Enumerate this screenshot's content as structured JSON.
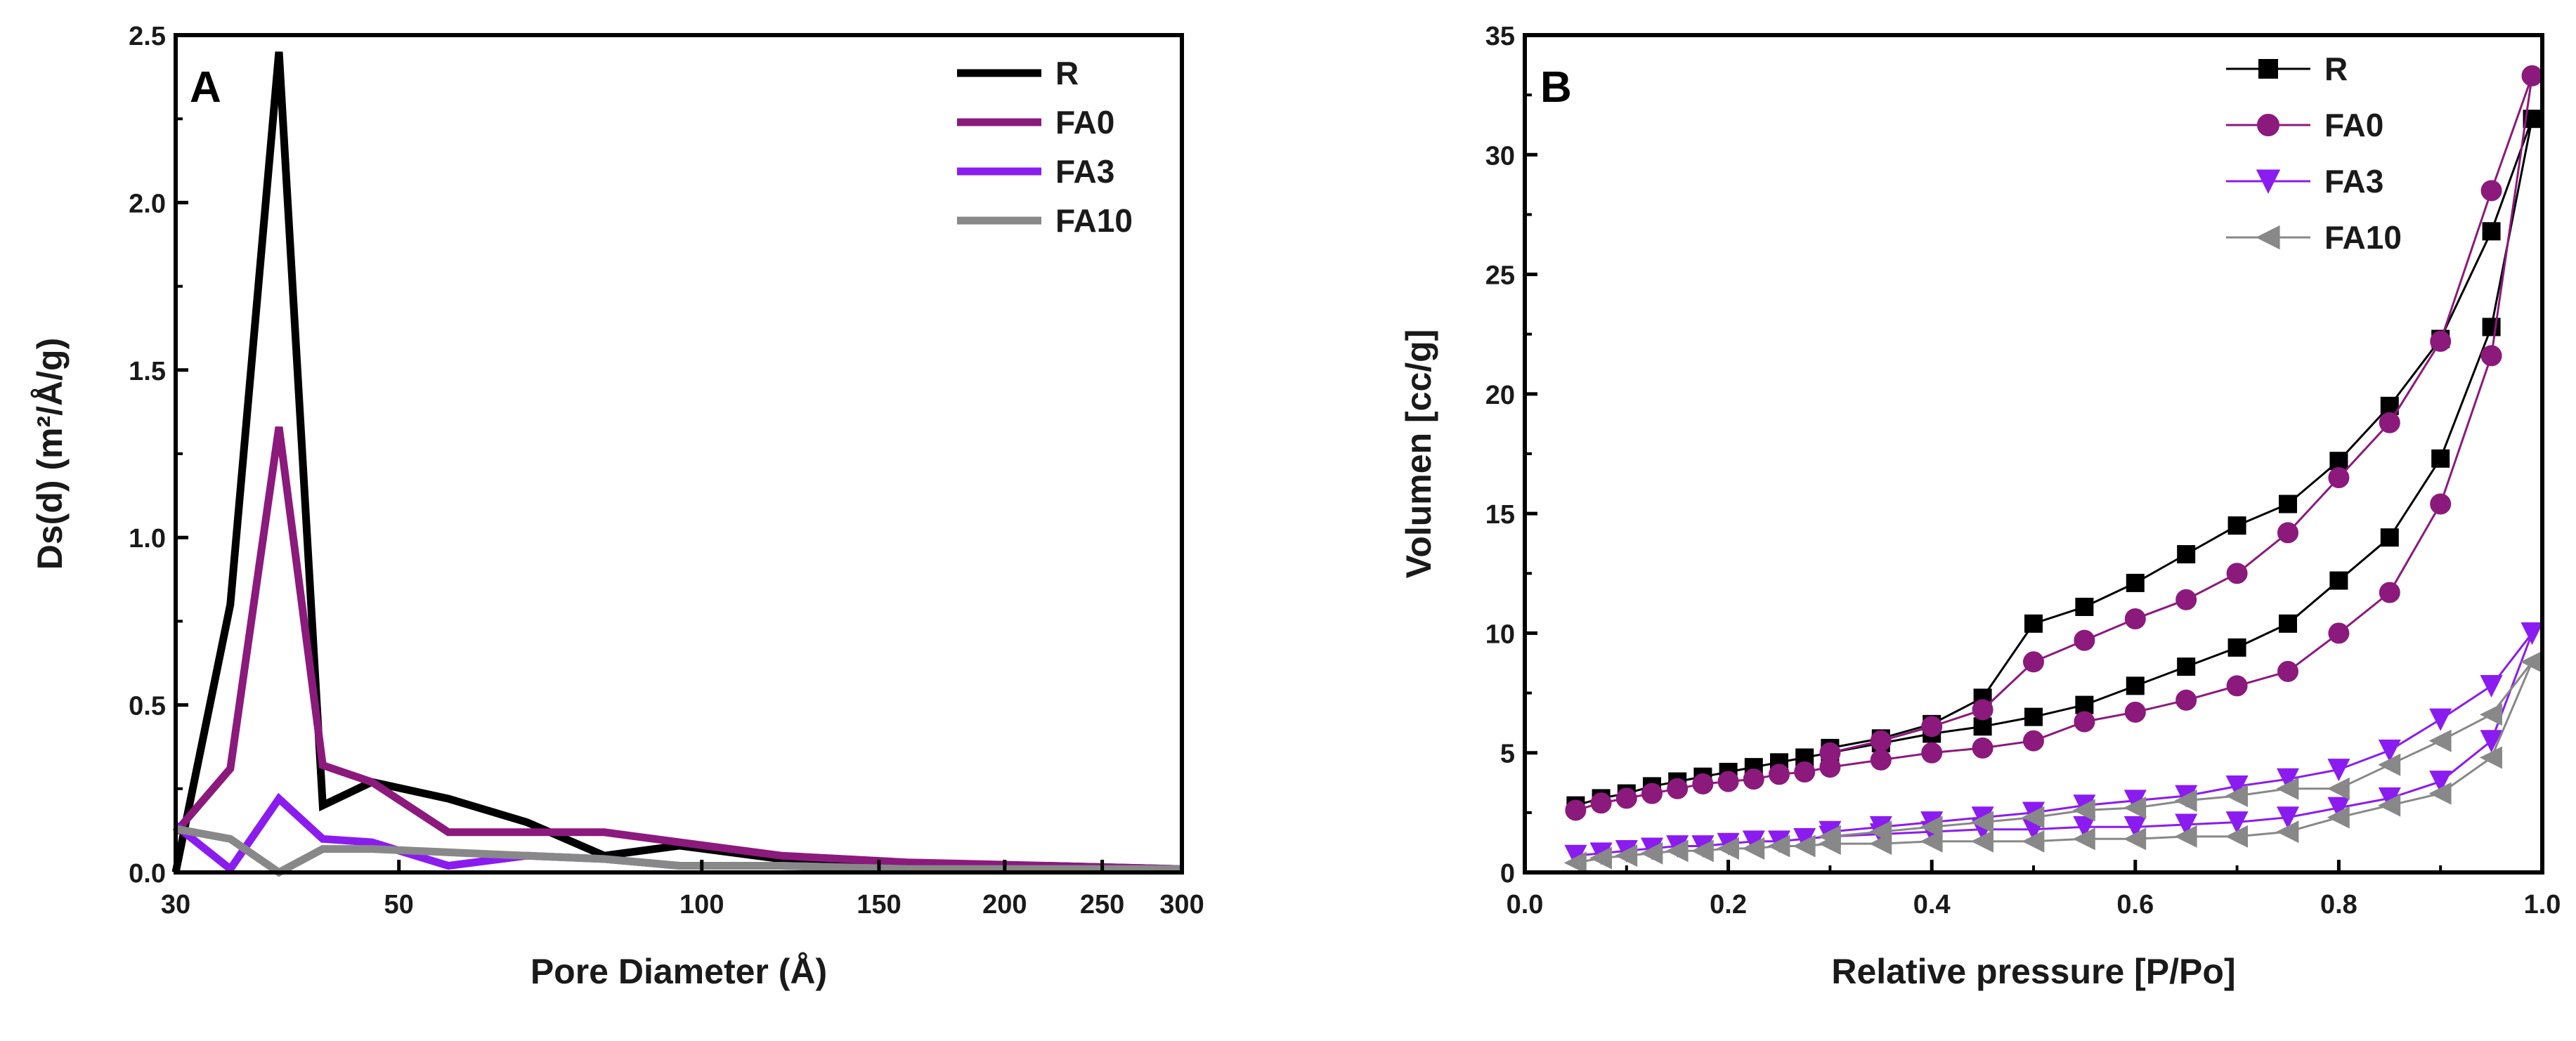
{
  "chart_data": [
    {
      "panel": "A",
      "type": "line",
      "xscale": "log",
      "xlabel": "Pore Diameter (Å)",
      "ylabel": "Ds(d) (m²/Å/g)",
      "xlim": [
        30,
        300
      ],
      "ylim": [
        0,
        2.5
      ],
      "xticks": [
        30,
        50,
        100,
        150,
        200,
        250,
        300
      ],
      "xtick_labels": [
        "30",
        "50",
        "100",
        "150",
        "200",
        "250",
        "300"
      ],
      "yticks": [
        0.0,
        0.5,
        1.0,
        1.5,
        2.0,
        2.5
      ],
      "ytick_labels": [
        "0.0",
        "0.5",
        "1.0",
        "1.5",
        "2.0",
        "2.5"
      ],
      "legend_position": "top-right",
      "series": [
        {
          "name": "R",
          "color": "#000000",
          "x": [
            30,
            34,
            38,
            42,
            47,
            56,
            67,
            80,
            95,
            120,
            160,
            220,
            300
          ],
          "y": [
            0.0,
            0.8,
            2.45,
            0.2,
            0.27,
            0.22,
            0.15,
            0.05,
            0.08,
            0.04,
            0.02,
            0.02,
            0.01
          ]
        },
        {
          "name": "FA0",
          "color": "#8b1a7c",
          "x": [
            30,
            34,
            38,
            42,
            47,
            56,
            67,
            80,
            95,
            120,
            160,
            220,
            300
          ],
          "y": [
            0.12,
            0.31,
            1.33,
            0.32,
            0.27,
            0.12,
            0.12,
            0.12,
            0.09,
            0.05,
            0.03,
            0.02,
            0.01
          ]
        },
        {
          "name": "FA3",
          "color": "#8a1cf0",
          "x": [
            30,
            34,
            38,
            42,
            47,
            56,
            67,
            80,
            95,
            120,
            160,
            220,
            300
          ],
          "y": [
            0.14,
            0.01,
            0.22,
            0.1,
            0.09,
            0.02,
            0.05,
            0.04,
            0.02,
            0.02,
            0.01,
            0.01,
            0.01
          ]
        },
        {
          "name": "FA10",
          "color": "#888888",
          "x": [
            30,
            34,
            38,
            42,
            47,
            56,
            67,
            80,
            95,
            120,
            160,
            220,
            300
          ],
          "y": [
            0.13,
            0.1,
            0.0,
            0.07,
            0.07,
            0.06,
            0.05,
            0.04,
            0.02,
            0.02,
            0.01,
            0.01,
            0.01
          ]
        }
      ]
    },
    {
      "panel": "B",
      "type": "line",
      "xlabel": "Relative pressure [P/Po]",
      "ylabel": "Volumen [cc/g]",
      "xlim": [
        0.0,
        1.0
      ],
      "ylim": [
        0,
        35
      ],
      "xticks": [
        0.0,
        0.2,
        0.4,
        0.6,
        0.8,
        1.0
      ],
      "xtick_labels": [
        "0.0",
        "0.2",
        "0.4",
        "0.6",
        "0.8",
        "1.0"
      ],
      "yticks": [
        0,
        5,
        10,
        15,
        20,
        25,
        30,
        35
      ],
      "ytick_labels": [
        "0",
        "5",
        "10",
        "15",
        "20",
        "25",
        "30",
        "35"
      ],
      "legend_position": "top-right",
      "series": [
        {
          "name": "R",
          "color": "#000000",
          "marker": "square",
          "x": [
            0.05,
            0.075,
            0.1,
            0.125,
            0.15,
            0.175,
            0.2,
            0.225,
            0.25,
            0.275,
            0.3,
            0.35,
            0.4,
            0.45,
            0.5,
            0.55,
            0.6,
            0.65,
            0.7,
            0.75,
            0.8,
            0.85,
            0.9,
            0.95,
            0.99,
            0.95,
            0.9,
            0.85,
            0.8,
            0.75,
            0.7,
            0.65,
            0.6,
            0.55,
            0.5,
            0.45,
            0.4,
            0.35,
            0.3
          ],
          "y": [
            2.8,
            3.1,
            3.3,
            3.6,
            3.8,
            4.0,
            4.2,
            4.4,
            4.6,
            4.8,
            5.0,
            5.4,
            5.8,
            6.1,
            6.5,
            7.0,
            7.8,
            8.6,
            9.4,
            10.4,
            12.2,
            14.0,
            17.3,
            22.8,
            31.5,
            26.8,
            22.3,
            19.5,
            17.2,
            15.4,
            14.5,
            13.3,
            12.1,
            11.1,
            10.4,
            7.3,
            6.2,
            5.6,
            5.2
          ]
        },
        {
          "name": "FA0",
          "color": "#8b1a7c",
          "marker": "circle",
          "x": [
            0.05,
            0.075,
            0.1,
            0.125,
            0.15,
            0.175,
            0.2,
            0.225,
            0.25,
            0.275,
            0.3,
            0.35,
            0.4,
            0.45,
            0.5,
            0.55,
            0.6,
            0.65,
            0.7,
            0.75,
            0.8,
            0.85,
            0.9,
            0.95,
            0.99,
            0.95,
            0.9,
            0.85,
            0.8,
            0.75,
            0.7,
            0.65,
            0.6,
            0.55,
            0.5,
            0.45,
            0.4,
            0.35,
            0.3
          ],
          "y": [
            2.6,
            2.9,
            3.1,
            3.3,
            3.5,
            3.7,
            3.8,
            3.9,
            4.1,
            4.2,
            4.4,
            4.7,
            5.0,
            5.2,
            5.5,
            6.3,
            6.7,
            7.2,
            7.8,
            8.4,
            10.0,
            11.7,
            15.4,
            21.6,
            33.3,
            28.5,
            22.2,
            18.8,
            16.5,
            14.2,
            12.5,
            11.4,
            10.6,
            9.7,
            8.8,
            6.8,
            6.1,
            5.5,
            5.0
          ]
        },
        {
          "name": "FA3",
          "color": "#8a1cf0",
          "marker": "triangle-down",
          "x": [
            0.05,
            0.075,
            0.1,
            0.125,
            0.15,
            0.175,
            0.2,
            0.225,
            0.25,
            0.275,
            0.3,
            0.35,
            0.4,
            0.45,
            0.5,
            0.55,
            0.6,
            0.65,
            0.7,
            0.75,
            0.8,
            0.85,
            0.9,
            0.95,
            0.99,
            0.95,
            0.9,
            0.85,
            0.8,
            0.75,
            0.7,
            0.65,
            0.6,
            0.55,
            0.5,
            0.45,
            0.4,
            0.35,
            0.3
          ],
          "y": [
            0.7,
            0.8,
            0.9,
            1.0,
            1.1,
            1.1,
            1.2,
            1.3,
            1.3,
            1.4,
            1.5,
            1.6,
            1.7,
            1.8,
            1.8,
            1.9,
            1.9,
            2.0,
            2.1,
            2.3,
            2.7,
            3.1,
            3.8,
            5.5,
            10.0,
            7.8,
            6.4,
            5.1,
            4.3,
            3.9,
            3.6,
            3.2,
            3.0,
            2.8,
            2.5,
            2.3,
            2.1,
            1.9,
            1.7
          ]
        },
        {
          "name": "FA10",
          "color": "#888888",
          "marker": "triangle-left",
          "x": [
            0.05,
            0.075,
            0.1,
            0.125,
            0.15,
            0.175,
            0.2,
            0.225,
            0.25,
            0.275,
            0.3,
            0.35,
            0.4,
            0.45,
            0.5,
            0.55,
            0.6,
            0.65,
            0.7,
            0.75,
            0.8,
            0.85,
            0.9,
            0.95,
            0.99,
            0.95,
            0.9,
            0.85,
            0.8,
            0.75,
            0.7,
            0.65,
            0.6,
            0.55,
            0.5,
            0.45,
            0.4,
            0.35,
            0.3
          ],
          "y": [
            0.4,
            0.6,
            0.7,
            0.8,
            0.9,
            0.9,
            1.0,
            1.0,
            1.1,
            1.1,
            1.2,
            1.2,
            1.3,
            1.3,
            1.3,
            1.4,
            1.4,
            1.5,
            1.5,
            1.7,
            2.3,
            2.8,
            3.3,
            4.8,
            8.8,
            6.6,
            5.5,
            4.5,
            3.5,
            3.5,
            3.2,
            3.0,
            2.7,
            2.6,
            2.3,
            2.1,
            1.9,
            1.7,
            1.5
          ]
        }
      ]
    }
  ]
}
